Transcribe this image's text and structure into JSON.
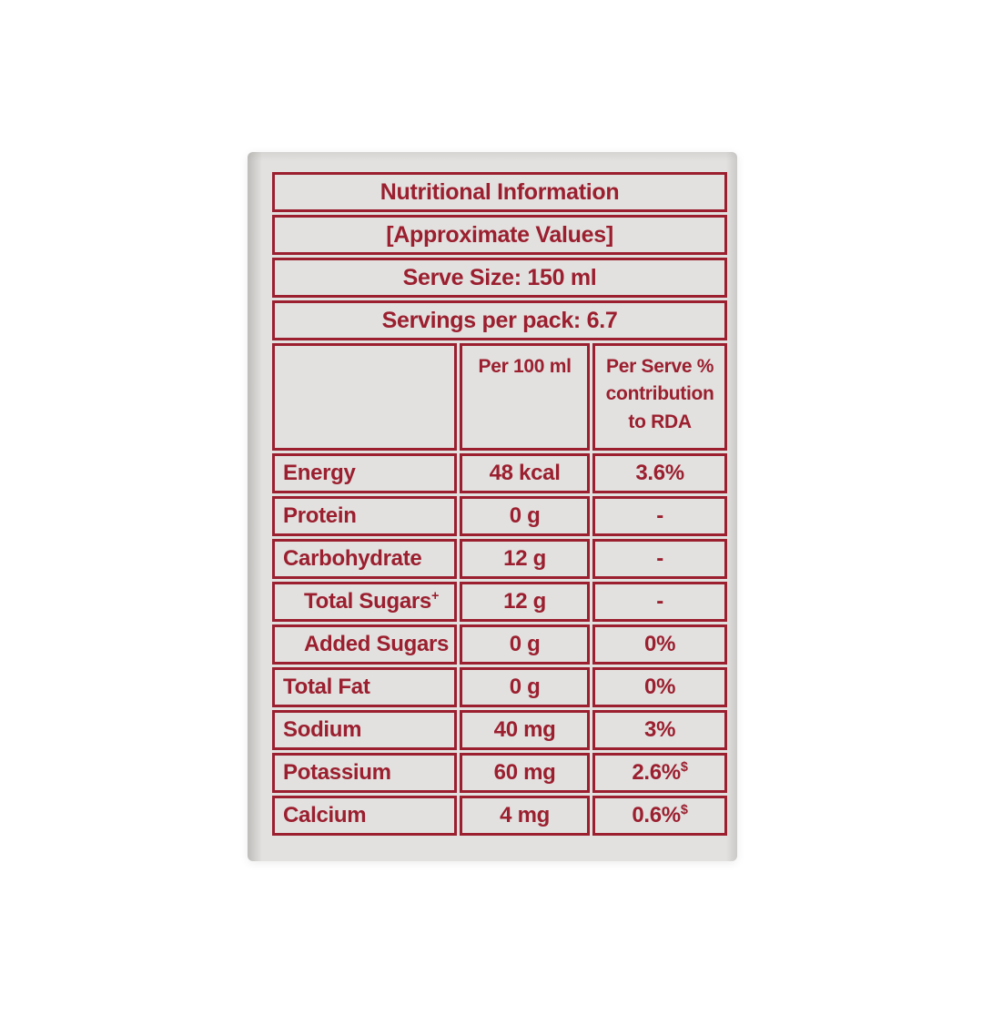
{
  "colors": {
    "accent_maroon": "#9b1f2f",
    "label_background": "#e2e1df",
    "page_background": "#ffffff"
  },
  "table": {
    "header_rows": [
      "Nutritional Information",
      "[Approximate Values]",
      "Serve Size: 150 ml",
      "Servings per pack: 6.7"
    ],
    "columns": [
      "",
      "Per 100 ml",
      "Per Serve % contribution to RDA"
    ],
    "rows": [
      {
        "label": "Energy",
        "label_sup": "",
        "indent": false,
        "per_100ml": "48 kcal",
        "per_serve_rda": "3.6%",
        "per_serve_sup": ""
      },
      {
        "label": "Protein",
        "label_sup": "",
        "indent": false,
        "per_100ml": "0 g",
        "per_serve_rda": "-",
        "per_serve_sup": ""
      },
      {
        "label": "Carbohydrate",
        "label_sup": "",
        "indent": false,
        "per_100ml": "12 g",
        "per_serve_rda": "-",
        "per_serve_sup": ""
      },
      {
        "label": "Total Sugars",
        "label_sup": "+",
        "indent": true,
        "per_100ml": "12 g",
        "per_serve_rda": "-",
        "per_serve_sup": ""
      },
      {
        "label": "Added Sugars",
        "label_sup": "",
        "indent": true,
        "per_100ml": "0 g",
        "per_serve_rda": "0%",
        "per_serve_sup": ""
      },
      {
        "label": "Total Fat",
        "label_sup": "",
        "indent": false,
        "per_100ml": "0 g",
        "per_serve_rda": "0%",
        "per_serve_sup": ""
      },
      {
        "label": "Sodium",
        "label_sup": "",
        "indent": false,
        "per_100ml": "40 mg",
        "per_serve_rda": "3%",
        "per_serve_sup": ""
      },
      {
        "label": "Potassium",
        "label_sup": "",
        "indent": false,
        "per_100ml": "60 mg",
        "per_serve_rda": "2.6%",
        "per_serve_sup": "$"
      },
      {
        "label": "Calcium",
        "label_sup": "",
        "indent": false,
        "per_100ml": "4 mg",
        "per_serve_rda": "0.6%",
        "per_serve_sup": "$"
      }
    ]
  }
}
